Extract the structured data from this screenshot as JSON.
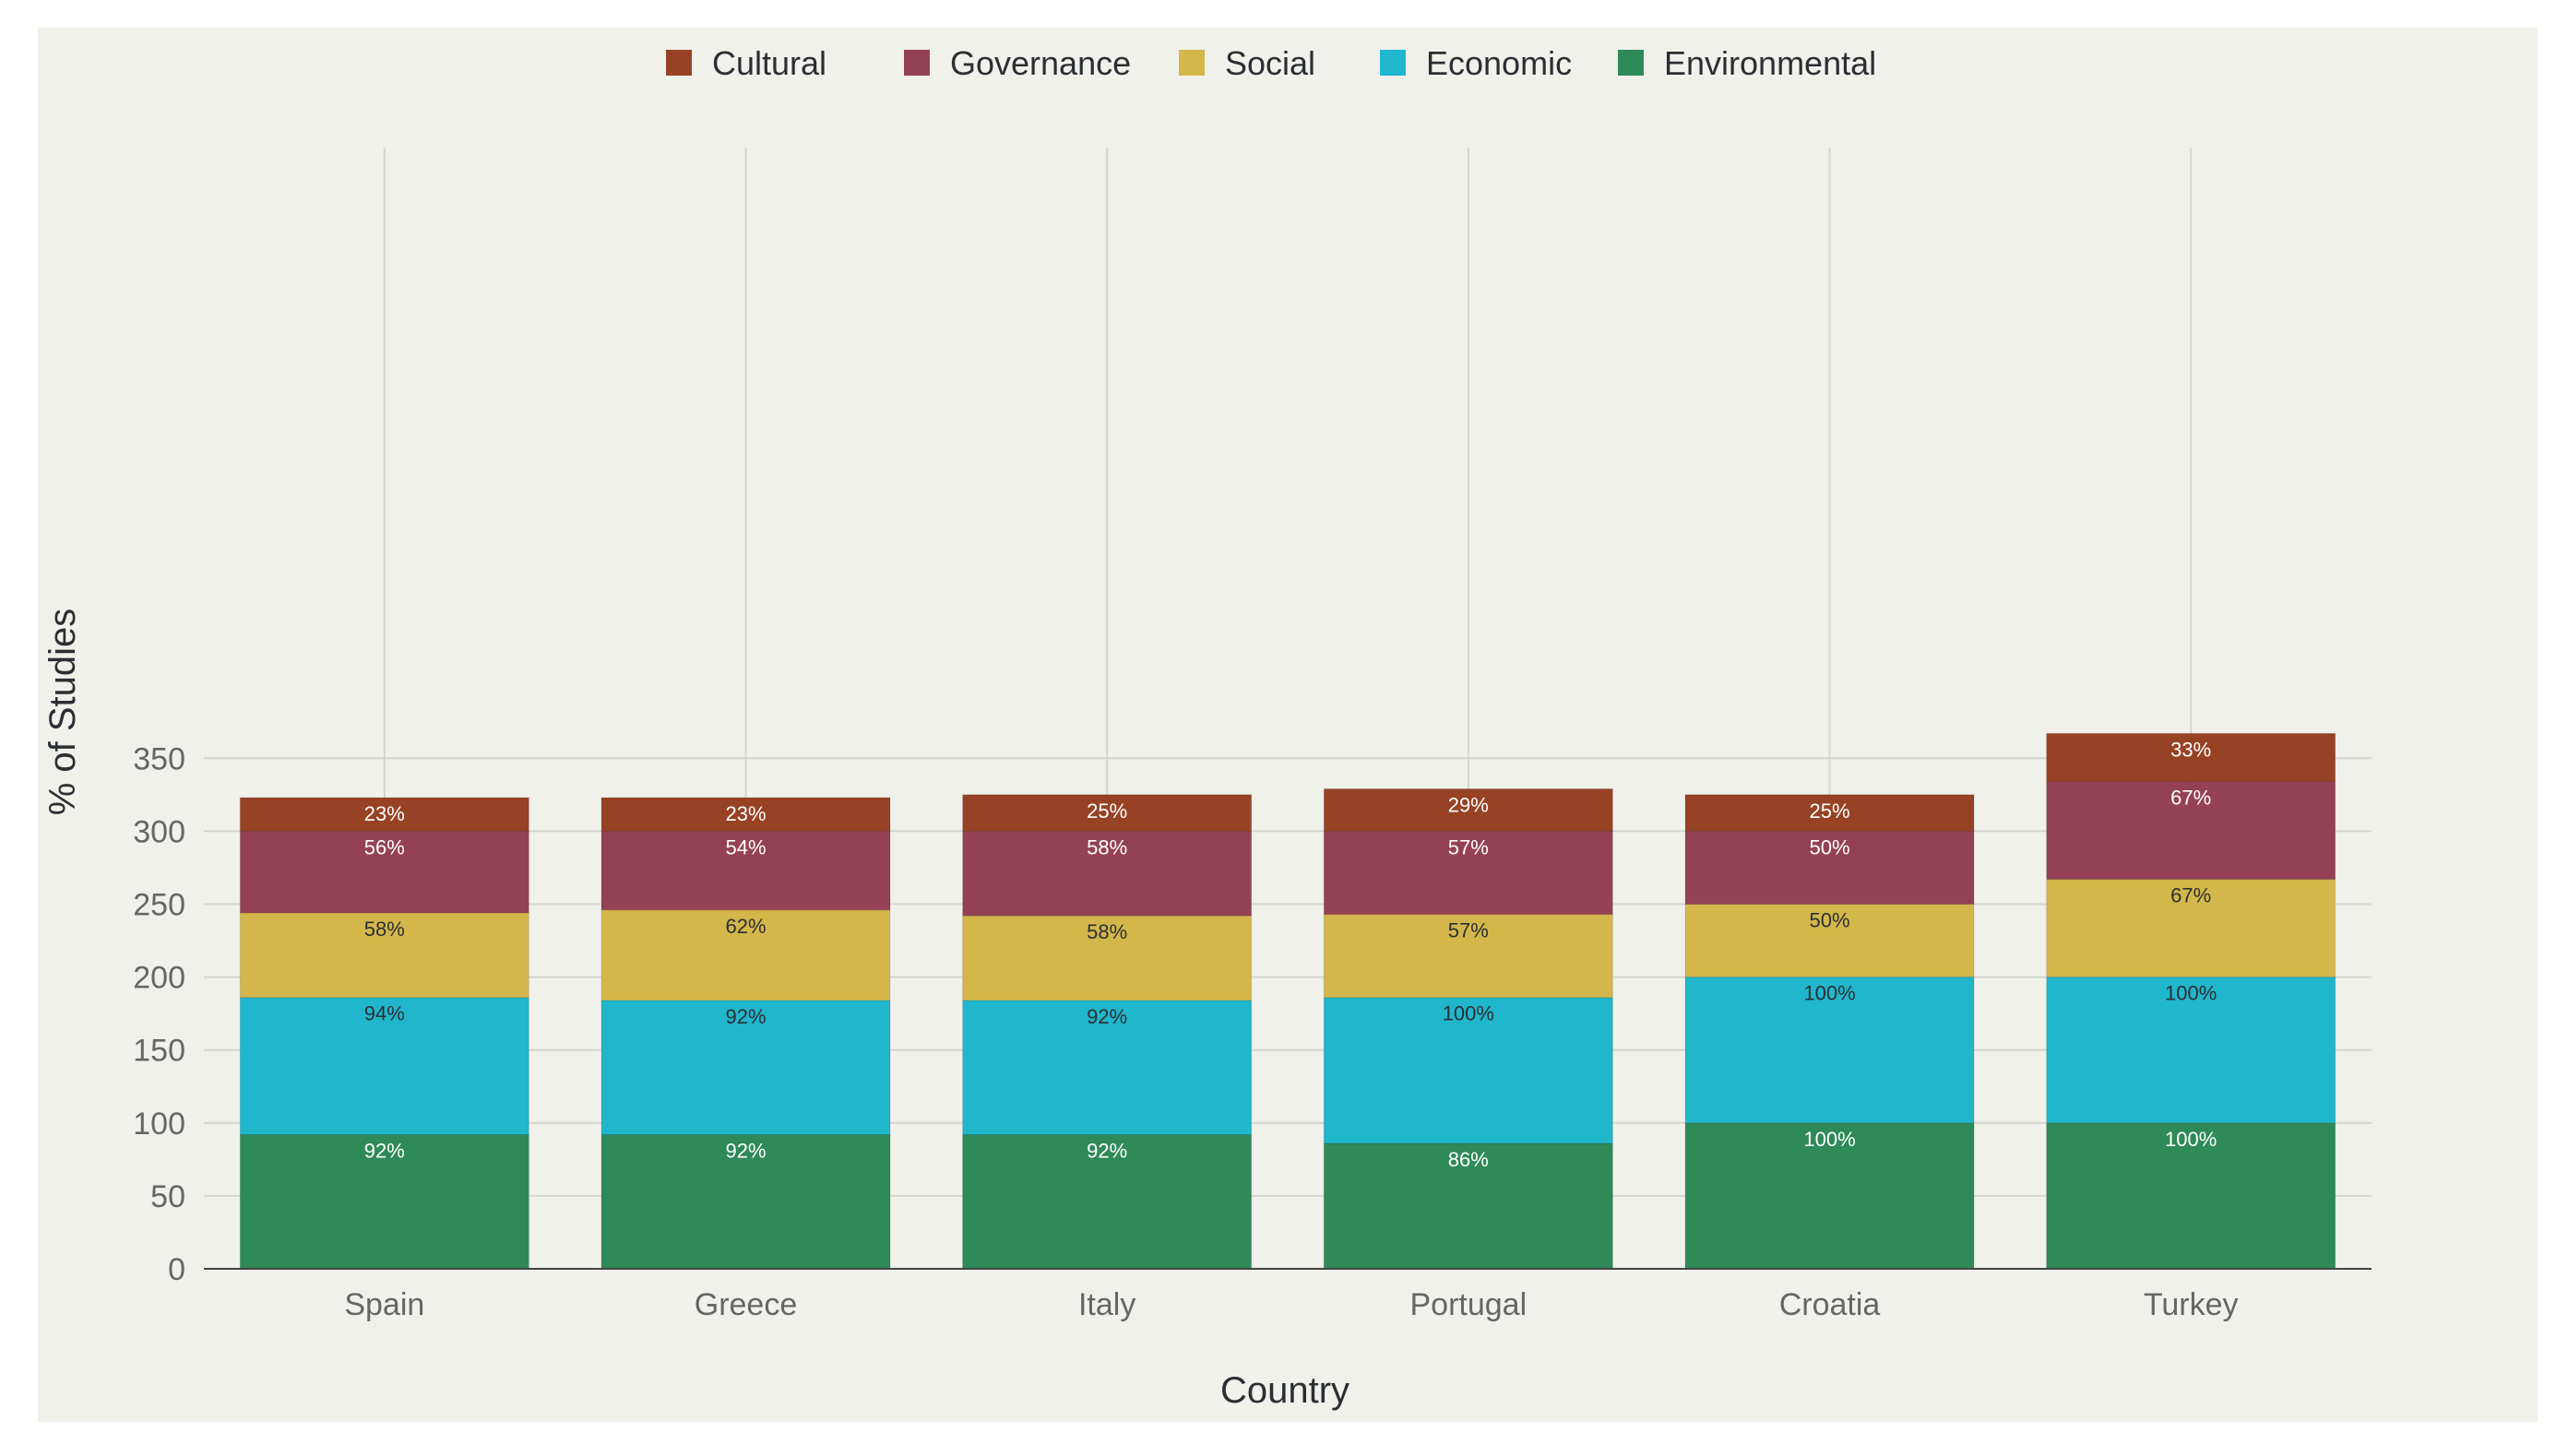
{
  "chart_data": {
    "type": "bar",
    "stacked": true,
    "title": "",
    "xlabel": "Country",
    "ylabel": "% of Studies",
    "categories": [
      "Spain",
      "Greece",
      "Italy",
      "Portugal",
      "Croatia",
      "Turkey"
    ],
    "ylim": [
      0,
      385
    ],
    "yticks": [
      0,
      50,
      100,
      150,
      200,
      250,
      300,
      350
    ],
    "grid": true,
    "legend_position": "top",
    "legend_order": [
      "Cultural",
      "Governance",
      "Social",
      "Economic",
      "Environmental"
    ],
    "series": [
      {
        "name": "Environmental",
        "color": "#2e8a57",
        "label_color": "#ffffff",
        "values": [
          92,
          92,
          92,
          86,
          100,
          100
        ],
        "labels": [
          "92%",
          "92%",
          "92%",
          "86%",
          "100%",
          "100%"
        ]
      },
      {
        "name": "Economic",
        "color": "#20b6cc",
        "label_color": "#2b2f33",
        "values": [
          94,
          92,
          92,
          100,
          100,
          100
        ],
        "labels": [
          "94%",
          "92%",
          "92%",
          "100%",
          "100%",
          "100%"
        ]
      },
      {
        "name": "Social",
        "color": "#d4b74b",
        "label_color": "#2b2f33",
        "values": [
          58,
          62,
          58,
          57,
          50,
          67
        ],
        "labels": [
          "58%",
          "62%",
          "58%",
          "57%",
          "50%",
          "67%"
        ]
      },
      {
        "name": "Governance",
        "color": "#944155",
        "label_color": "#ffffff",
        "values": [
          56,
          54,
          58,
          57,
          50,
          67
        ],
        "labels": [
          "56%",
          "54%",
          "58%",
          "57%",
          "50%",
          "67%"
        ]
      },
      {
        "name": "Cultural",
        "color": "#974225",
        "label_color": "#ffffff",
        "values": [
          23,
          23,
          25,
          29,
          25,
          33
        ],
        "labels": [
          "23%",
          "23%",
          "25%",
          "29%",
          "25%",
          "33%"
        ]
      }
    ]
  }
}
